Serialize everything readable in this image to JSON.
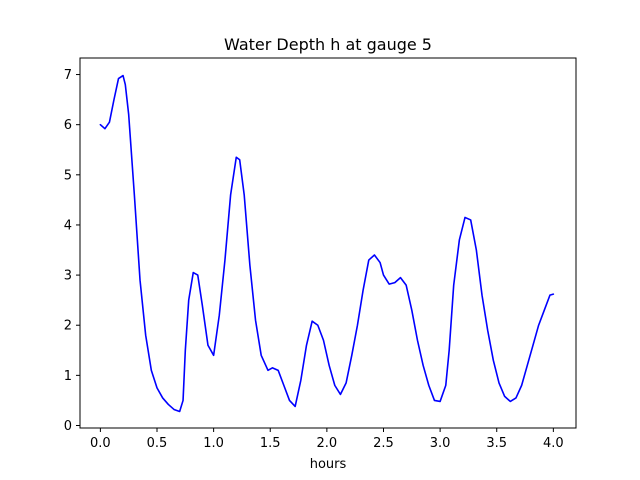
{
  "chart_data": {
    "type": "line",
    "title": "Water Depth h at gauge 5",
    "xlabel": "hours",
    "ylabel": "",
    "xlim": [
      -0.18,
      4.2
    ],
    "ylim": [
      -0.05,
      7.33
    ],
    "xticks": [
      0.0,
      0.5,
      1.0,
      1.5,
      2.0,
      2.5,
      3.0,
      3.5,
      4.0
    ],
    "xtick_labels": [
      "0.0",
      "0.5",
      "1.0",
      "1.5",
      "2.0",
      "2.5",
      "3.0",
      "3.5",
      "4.0"
    ],
    "yticks": [
      0,
      1,
      2,
      3,
      4,
      5,
      6,
      7
    ],
    "ytick_labels": [
      "0",
      "1",
      "2",
      "3",
      "4",
      "5",
      "6",
      "7"
    ],
    "grid": false,
    "series": [
      {
        "color": "#0000ff",
        "x": [
          0.0,
          0.04,
          0.08,
          0.12,
          0.16,
          0.2,
          0.22,
          0.25,
          0.3,
          0.35,
          0.4,
          0.45,
          0.5,
          0.55,
          0.6,
          0.65,
          0.7,
          0.73,
          0.75,
          0.78,
          0.82,
          0.86,
          0.9,
          0.95,
          1.0,
          1.05,
          1.1,
          1.15,
          1.2,
          1.23,
          1.27,
          1.32,
          1.37,
          1.42,
          1.48,
          1.52,
          1.57,
          1.62,
          1.67,
          1.72,
          1.77,
          1.82,
          1.87,
          1.92,
          1.97,
          2.02,
          2.07,
          2.12,
          2.17,
          2.22,
          2.27,
          2.32,
          2.37,
          2.42,
          2.47,
          2.5,
          2.55,
          2.6,
          2.65,
          2.7,
          2.75,
          2.8,
          2.85,
          2.9,
          2.95,
          3.0,
          3.05,
          3.08,
          3.12,
          3.17,
          3.22,
          3.27,
          3.32,
          3.37,
          3.42,
          3.47,
          3.52,
          3.57,
          3.62,
          3.67,
          3.72,
          3.77,
          3.82,
          3.87,
          3.92,
          3.97,
          4.0
        ],
        "y": [
          6.0,
          5.92,
          6.05,
          6.5,
          6.92,
          6.98,
          6.8,
          6.2,
          4.6,
          2.9,
          1.8,
          1.1,
          0.75,
          0.55,
          0.42,
          0.32,
          0.28,
          0.5,
          1.5,
          2.5,
          3.05,
          3.0,
          2.4,
          1.6,
          1.4,
          2.2,
          3.3,
          4.6,
          5.35,
          5.3,
          4.6,
          3.2,
          2.1,
          1.4,
          1.1,
          1.15,
          1.1,
          0.8,
          0.5,
          0.38,
          0.9,
          1.6,
          2.08,
          2.0,
          1.7,
          1.2,
          0.8,
          0.62,
          0.85,
          1.4,
          2.0,
          2.7,
          3.3,
          3.4,
          3.25,
          3.0,
          2.82,
          2.85,
          2.95,
          2.8,
          2.3,
          1.7,
          1.2,
          0.8,
          0.5,
          0.48,
          0.8,
          1.5,
          2.8,
          3.7,
          4.15,
          4.1,
          3.5,
          2.6,
          1.9,
          1.3,
          0.85,
          0.58,
          0.48,
          0.55,
          0.8,
          1.2,
          1.6,
          2.0,
          2.3,
          2.6,
          2.62
        ]
      }
    ]
  }
}
